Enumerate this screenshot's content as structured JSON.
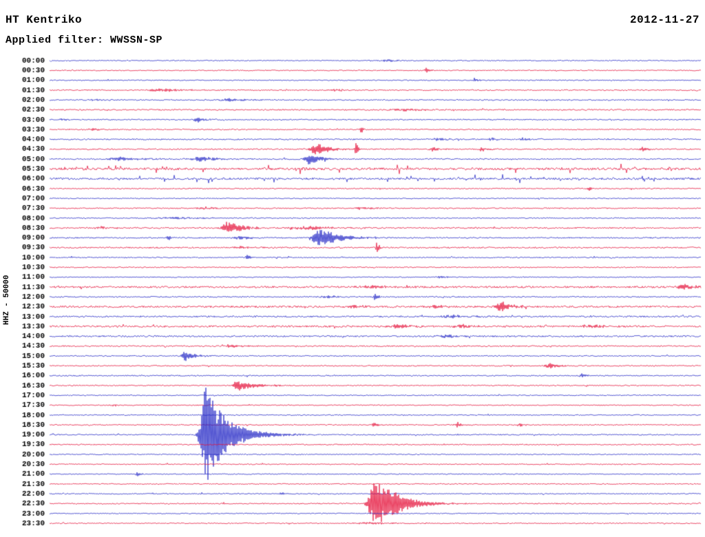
{
  "header": {
    "station": "HT Kentriko",
    "date": "2012-11-27",
    "filter": "Applied filter: WWSSN-SP"
  },
  "side": {
    "scale": "HHZ - 50000"
  },
  "colors": {
    "blue": "#1d22c4",
    "red": "#e40b34",
    "label": "#000000",
    "background": "#ffffff"
  },
  "chart_data": {
    "type": "helicorder",
    "title": "HT Kentriko 2012-11-27 HHZ seismogram, WWSSN-SP filter, scale 50000",
    "row_interval_minutes": 30,
    "row_span_minutes": 30,
    "first_row": "00:00",
    "last_row": "23:30",
    "ev_format": [
      "x_fraction_of_trace",
      "amplitude_px",
      "rise_px",
      "decay_px"
    ],
    "rows": [
      {
        "t": "00:00",
        "c": "blue",
        "n": 0.7,
        "ev": [
          [
            0.52,
            1.8,
            8,
            15
          ]
        ]
      },
      {
        "t": "00:30",
        "c": "red",
        "n": 0.7,
        "ev": [
          [
            0.579,
            4,
            2,
            5
          ]
        ]
      },
      {
        "t": "01:00",
        "c": "blue",
        "n": 0.7,
        "ev": [
          [
            0.653,
            3.5,
            2,
            5
          ]
        ]
      },
      {
        "t": "01:30",
        "c": "red",
        "n": 0.8,
        "ev": [
          [
            0.172,
            2.5,
            15,
            30
          ],
          [
            0.44,
            1.5,
            10,
            20
          ]
        ]
      },
      {
        "t": "02:00",
        "c": "blue",
        "n": 0.8,
        "ev": [
          [
            0.278,
            2.2,
            12,
            25
          ],
          [
            0.07,
            1.5,
            8,
            15
          ]
        ]
      },
      {
        "t": "02:30",
        "c": "red",
        "n": 0.9,
        "ev": [
          [
            0.55,
            1.5,
            20,
            40
          ]
        ]
      },
      {
        "t": "03:00",
        "c": "blue",
        "n": 0.8,
        "ev": [
          [
            0.228,
            4,
            4,
            10
          ],
          [
            0.02,
            2,
            4,
            8
          ]
        ]
      },
      {
        "t": "03:30",
        "c": "red",
        "n": 0.8,
        "ev": [
          [
            0.479,
            6,
            1.5,
            3
          ],
          [
            0.07,
            2,
            6,
            10
          ]
        ]
      },
      {
        "t": "04:00",
        "c": "blue",
        "n": 0.9,
        "ev": [
          [
            0.6,
            1.8,
            15,
            25
          ],
          [
            0.68,
            2,
            6,
            10
          ],
          [
            0.73,
            2,
            5,
            8
          ]
        ]
      },
      {
        "t": "04:30",
        "c": "red",
        "n": 0.9,
        "ev": [
          [
            0.41,
            9,
            6,
            18
          ],
          [
            0.471,
            12,
            1.5,
            2
          ],
          [
            0.59,
            3,
            4,
            8
          ],
          [
            0.664,
            3,
            4,
            8
          ],
          [
            0.912,
            4,
            3,
            6
          ]
        ]
      },
      {
        "t": "05:00",
        "c": "blue",
        "n": 0.9,
        "ev": [
          [
            0.4,
            8,
            5,
            15
          ],
          [
            0.109,
            3,
            10,
            25
          ],
          [
            0.236,
            3.5,
            12,
            20
          ]
        ]
      },
      {
        "t": "05:30",
        "c": "red",
        "n": 1.6,
        "spiky": 1,
        "ev": []
      },
      {
        "t": "06:00",
        "c": "blue",
        "n": 1.4,
        "spiky": 1,
        "ev": []
      },
      {
        "t": "06:30",
        "c": "red",
        "n": 0.8,
        "ev": [
          [
            0.828,
            3,
            2,
            4
          ]
        ]
      },
      {
        "t": "07:00",
        "c": "blue",
        "n": 0.7,
        "ev": []
      },
      {
        "t": "07:30",
        "c": "red",
        "n": 0.8,
        "ev": [
          [
            0.24,
            1.8,
            10,
            20
          ],
          [
            0.48,
            1.8,
            8,
            15
          ]
        ]
      },
      {
        "t": "08:00",
        "c": "blue",
        "n": 0.8,
        "ev": [
          [
            0.2,
            1.5,
            20,
            40
          ]
        ]
      },
      {
        "t": "08:30",
        "c": "red",
        "n": 1.0,
        "ev": [
          [
            0.273,
            10,
            5,
            20
          ],
          [
            0.4,
            2.5,
            20,
            40
          ],
          [
            0.082,
            2,
            8,
            15
          ]
        ]
      },
      {
        "t": "09:00",
        "c": "blue",
        "n": 0.9,
        "ev": [
          [
            0.415,
            13,
            8,
            30
          ],
          [
            0.183,
            4,
            2,
            4
          ],
          [
            0.294,
            2.5,
            8,
            15
          ]
        ]
      },
      {
        "t": "09:30",
        "c": "red",
        "n": 1.0,
        "ev": [
          [
            0.294,
            2,
            8,
            15
          ],
          [
            0.503,
            9,
            1.5,
            3
          ]
        ]
      },
      {
        "t": "10:00",
        "c": "blue",
        "n": 0.8,
        "ev": [
          [
            0.304,
            4,
            2,
            6
          ]
        ]
      },
      {
        "t": "10:30",
        "c": "red",
        "n": 0.8,
        "ev": []
      },
      {
        "t": "11:00",
        "c": "blue",
        "n": 0.7,
        "ev": [
          [
            0.6,
            1.5,
            6,
            10
          ]
        ]
      },
      {
        "t": "11:30",
        "c": "red",
        "n": 1.3,
        "ev": [
          [
            0.976,
            4,
            8,
            15
          ],
          [
            0.5,
            2,
            15,
            30
          ]
        ]
      },
      {
        "t": "12:00",
        "c": "blue",
        "n": 0.9,
        "ev": [
          [
            0.5,
            6,
            1.5,
            4
          ],
          [
            0.43,
            2,
            8,
            15
          ]
        ]
      },
      {
        "t": "12:30",
        "c": "red",
        "n": 1.3,
        "ev": [
          [
            0.695,
            7,
            6,
            14
          ],
          [
            0.468,
            3,
            8,
            15
          ],
          [
            0.595,
            2.5,
            8,
            12
          ]
        ]
      },
      {
        "t": "13:00",
        "c": "blue",
        "n": 1.1,
        "ev": [
          [
            0.62,
            2,
            15,
            30
          ]
        ]
      },
      {
        "t": "13:30",
        "c": "red",
        "n": 1.3,
        "ev": [
          [
            0.537,
            2.5,
            10,
            18
          ],
          [
            0.632,
            3,
            8,
            14
          ],
          [
            0.833,
            2.5,
            10,
            18
          ]
        ]
      },
      {
        "t": "14:00",
        "c": "blue",
        "n": 1.1,
        "ev": [
          [
            0.611,
            2.2,
            10,
            18
          ]
        ]
      },
      {
        "t": "14:30",
        "c": "red",
        "n": 0.9,
        "ev": [
          [
            0.28,
            2,
            8,
            14
          ]
        ]
      },
      {
        "t": "15:00",
        "c": "blue",
        "n": 0.8,
        "ev": [
          [
            0.209,
            7,
            4,
            12
          ]
        ]
      },
      {
        "t": "15:30",
        "c": "red",
        "n": 0.8,
        "ev": [
          [
            0.77,
            4,
            6,
            12
          ]
        ]
      },
      {
        "t": "16:00",
        "c": "blue",
        "n": 0.8,
        "ev": [
          [
            0.817,
            4,
            2,
            5
          ]
        ]
      },
      {
        "t": "16:30",
        "c": "red",
        "n": 0.8,
        "ev": [
          [
            0.289,
            8,
            5,
            25
          ]
        ]
      },
      {
        "t": "17:00",
        "c": "blue",
        "n": 0.7,
        "ev": []
      },
      {
        "t": "17:30",
        "c": "red",
        "n": 0.7,
        "ev": [
          [
            0.1,
            1.5,
            5,
            10
          ]
        ]
      },
      {
        "t": "18:00",
        "c": "blue",
        "n": 0.7,
        "ev": []
      },
      {
        "t": "18:30",
        "c": "red",
        "n": 0.8,
        "ev": [
          [
            0.5,
            3,
            3,
            6
          ],
          [
            0.627,
            3.5,
            3,
            6
          ],
          [
            0.722,
            3,
            3,
            6
          ]
        ]
      },
      {
        "t": "19:00",
        "c": "blue",
        "n": 0.8,
        "ev": [
          [
            0.241,
            75,
            6,
            22
          ],
          [
            0.26,
            12,
            2,
            45
          ]
        ]
      },
      {
        "t": "19:30",
        "c": "red",
        "n": 0.8,
        "ev": []
      },
      {
        "t": "20:00",
        "c": "blue",
        "n": 0.7,
        "ev": []
      },
      {
        "t": "20:30",
        "c": "red",
        "n": 0.7,
        "ev": []
      },
      {
        "t": "21:00",
        "c": "blue",
        "n": 0.7,
        "ev": [
          [
            0.135,
            4,
            2,
            5
          ]
        ]
      },
      {
        "t": "21:30",
        "c": "red",
        "n": 0.7,
        "ev": []
      },
      {
        "t": "22:00",
        "c": "blue",
        "n": 0.8,
        "ev": [
          [
            0.357,
            2.5,
            3,
            6
          ]
        ]
      },
      {
        "t": "22:30",
        "c": "red",
        "n": 0.8,
        "ev": [
          [
            0.5,
            38,
            6,
            25
          ],
          [
            0.52,
            8,
            2,
            35
          ]
        ]
      },
      {
        "t": "23:00",
        "c": "blue",
        "n": 0.7,
        "ev": []
      },
      {
        "t": "23:30",
        "c": "red",
        "n": 0.7,
        "ev": [
          [
            0.5,
            1.5,
            20,
            40
          ]
        ]
      }
    ]
  }
}
